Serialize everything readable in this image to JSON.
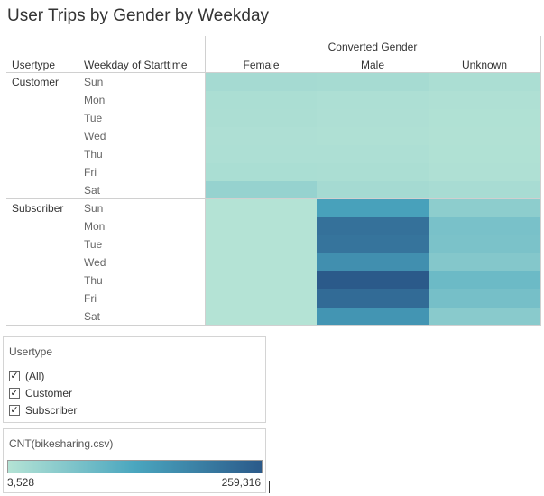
{
  "chart_data": {
    "type": "heatmap",
    "title": "User Trips by Gender by Weekday",
    "column_group_label": "Converted Gender",
    "row_headers": [
      "Usertype",
      "Weekday of Starttime"
    ],
    "columns": [
      "Female",
      "Male",
      "Unknown"
    ],
    "row_groups": [
      {
        "name": "Customer",
        "rows": [
          "Sun",
          "Mon",
          "Tue",
          "Wed",
          "Thu",
          "Fri",
          "Sat"
        ],
        "values": [
          [
            22000,
            20000,
            14000
          ],
          [
            14000,
            12000,
            9000
          ],
          [
            13000,
            11000,
            8000
          ],
          [
            11000,
            10000,
            7000
          ],
          [
            12000,
            12000,
            8000
          ],
          [
            15000,
            14000,
            10000
          ],
          [
            40000,
            22000,
            18000
          ]
        ]
      },
      {
        "name": "Subscriber",
        "rows": [
          "Sun",
          "Mon",
          "Tue",
          "Wed",
          "Thu",
          "Fri",
          "Sat"
        ],
        "values": [
          [
            3528,
            140000,
            50000
          ],
          [
            3600,
            220000,
            75000
          ],
          [
            3600,
            215000,
            72000
          ],
          [
            3600,
            170000,
            62000
          ],
          [
            3600,
            259316,
            90000
          ],
          [
            3600,
            230000,
            78000
          ],
          [
            3528,
            160000,
            55000
          ]
        ]
      }
    ],
    "color_legend": {
      "title": "CNT(bikesharing.csv)",
      "min": 3528,
      "max": 259316,
      "min_label": "3,528",
      "max_label": "259,316",
      "colors": [
        "#b4e3d5",
        "#4aa6bf",
        "#2b5a8a"
      ]
    }
  },
  "filter": {
    "title": "Usertype",
    "items": [
      {
        "label": "(All)",
        "checked": true
      },
      {
        "label": "Customer",
        "checked": true
      },
      {
        "label": "Subscriber",
        "checked": true
      }
    ]
  }
}
